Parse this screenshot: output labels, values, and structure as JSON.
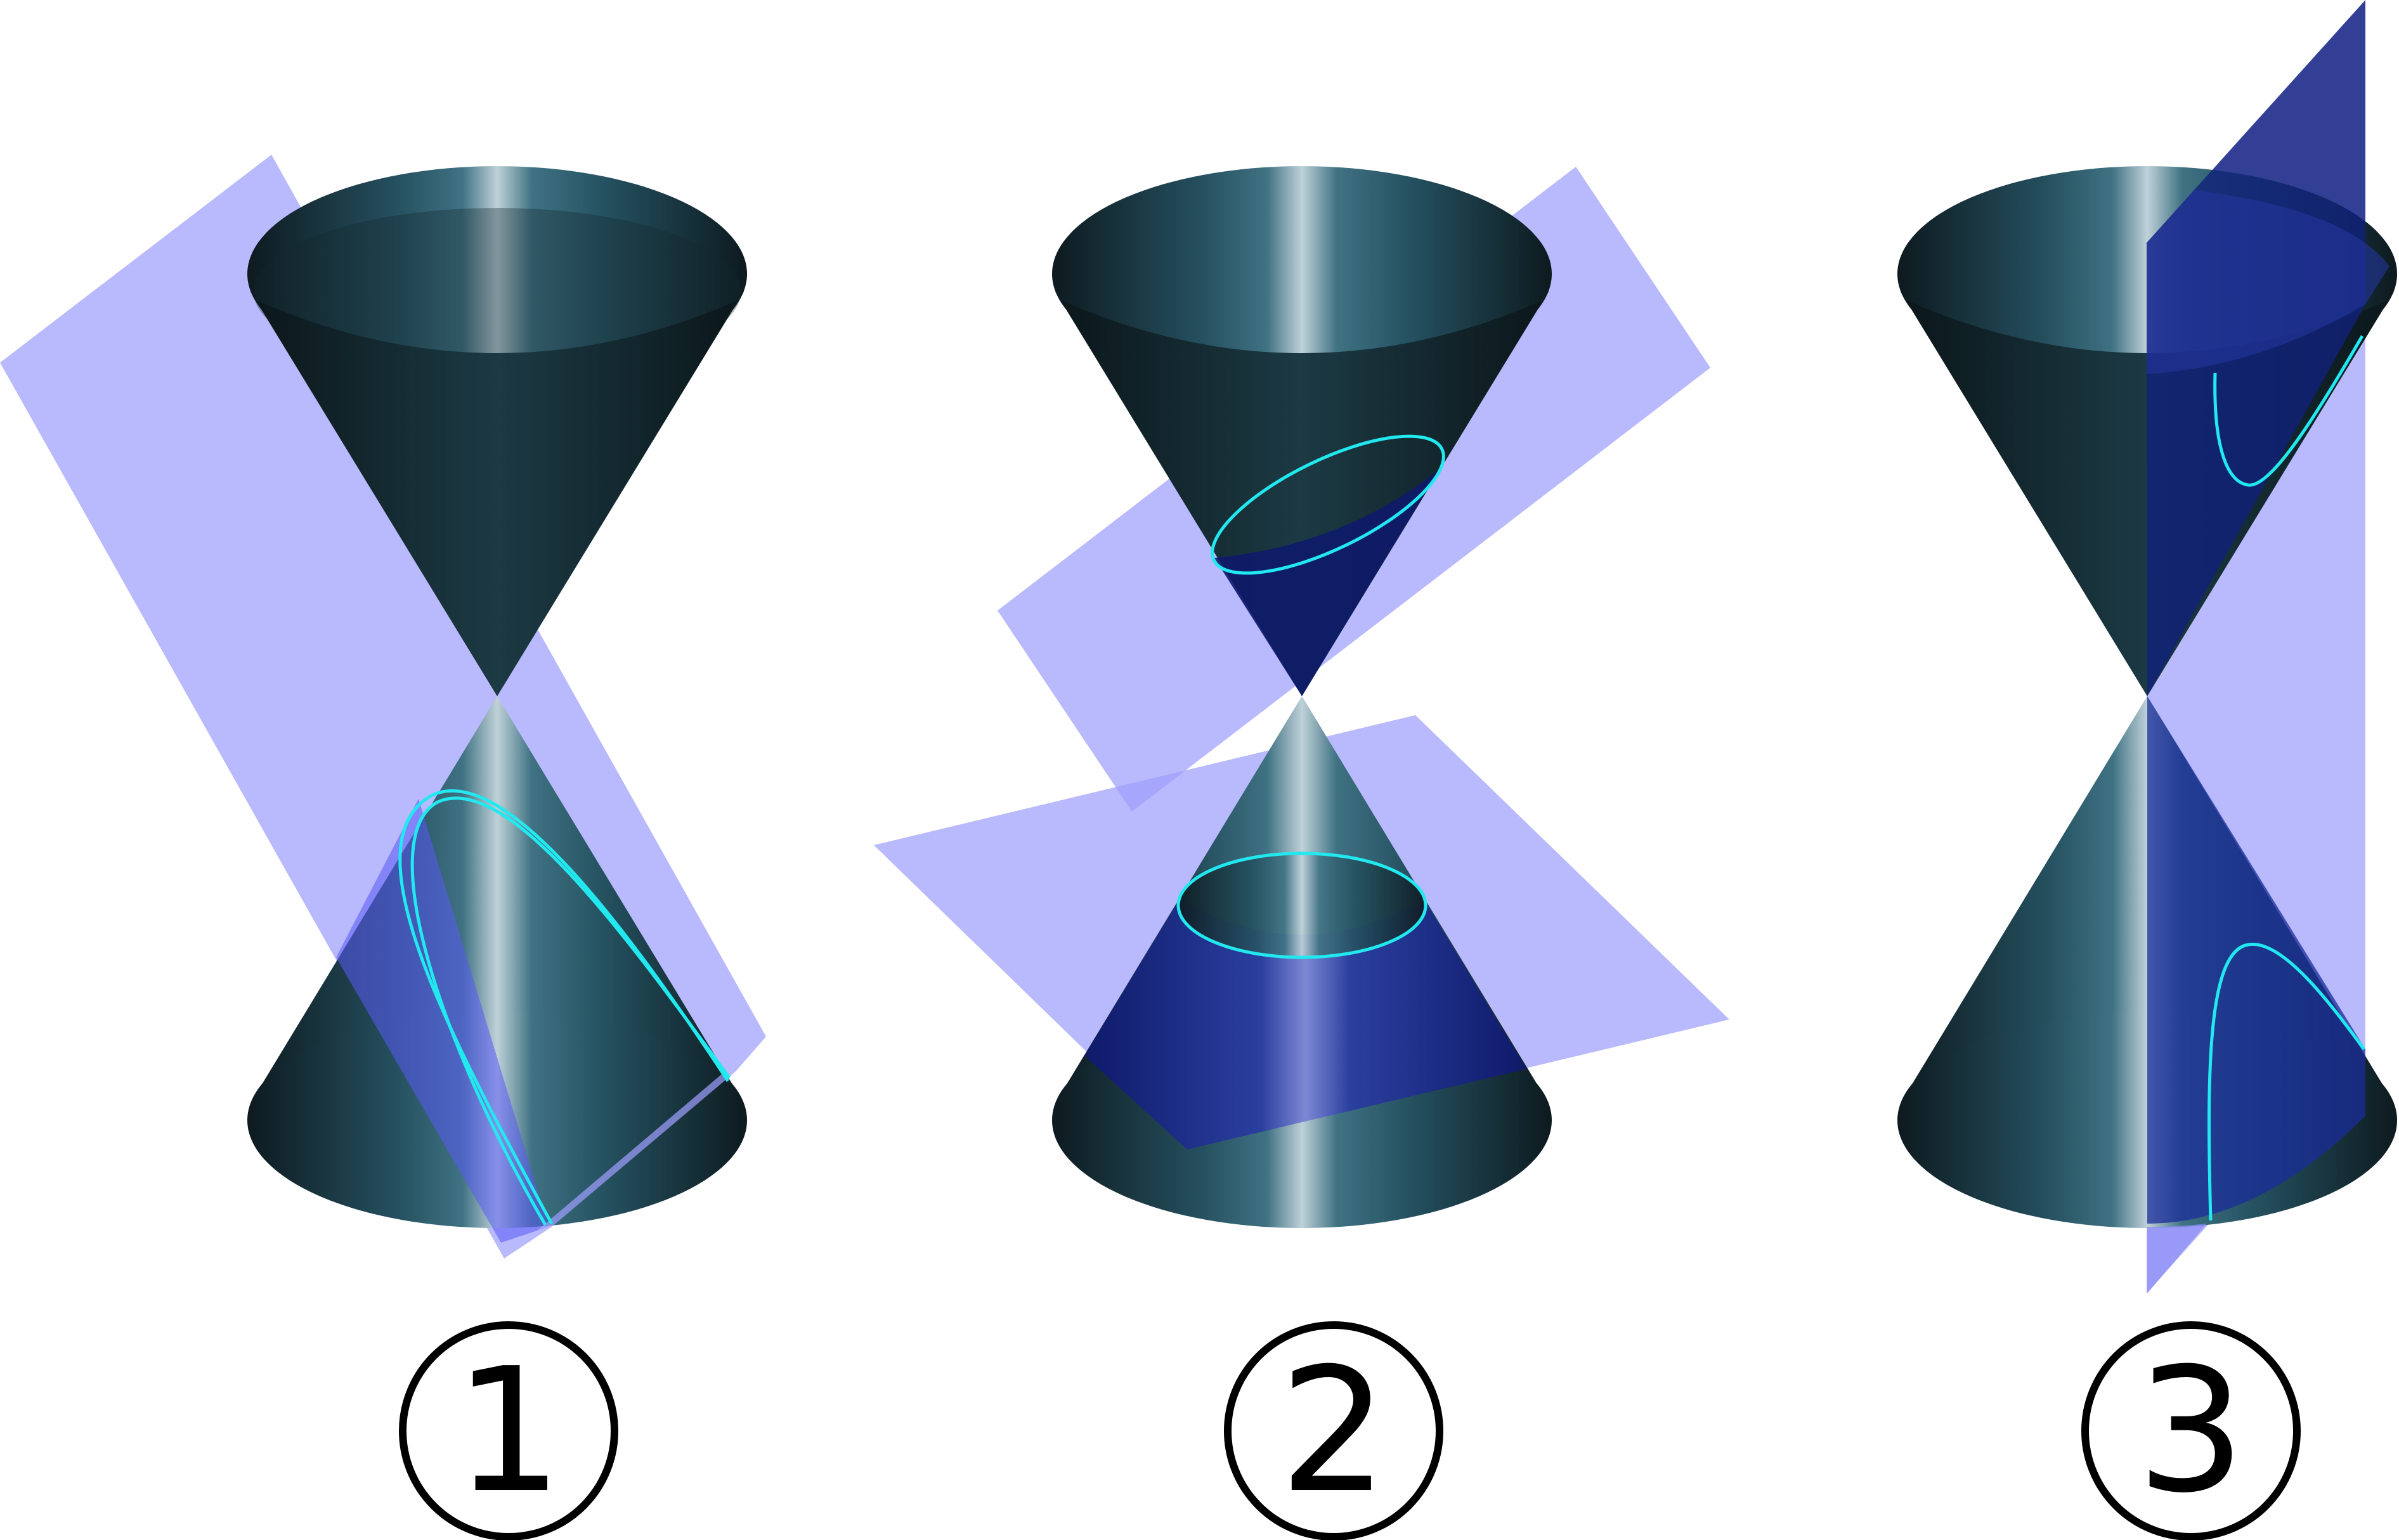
{
  "panels": [
    {
      "label": "①",
      "conic": "parabola"
    },
    {
      "label": "②",
      "conic": "ellipse"
    },
    {
      "label": "③",
      "conic": "hyperbola"
    }
  ],
  "colors": {
    "plane": "#9e9efc",
    "curve": "#22e8f0",
    "cone_dark": "#0e1d22",
    "cone_mid": "#25505f",
    "cone_highlight": "#b8ccd4"
  }
}
